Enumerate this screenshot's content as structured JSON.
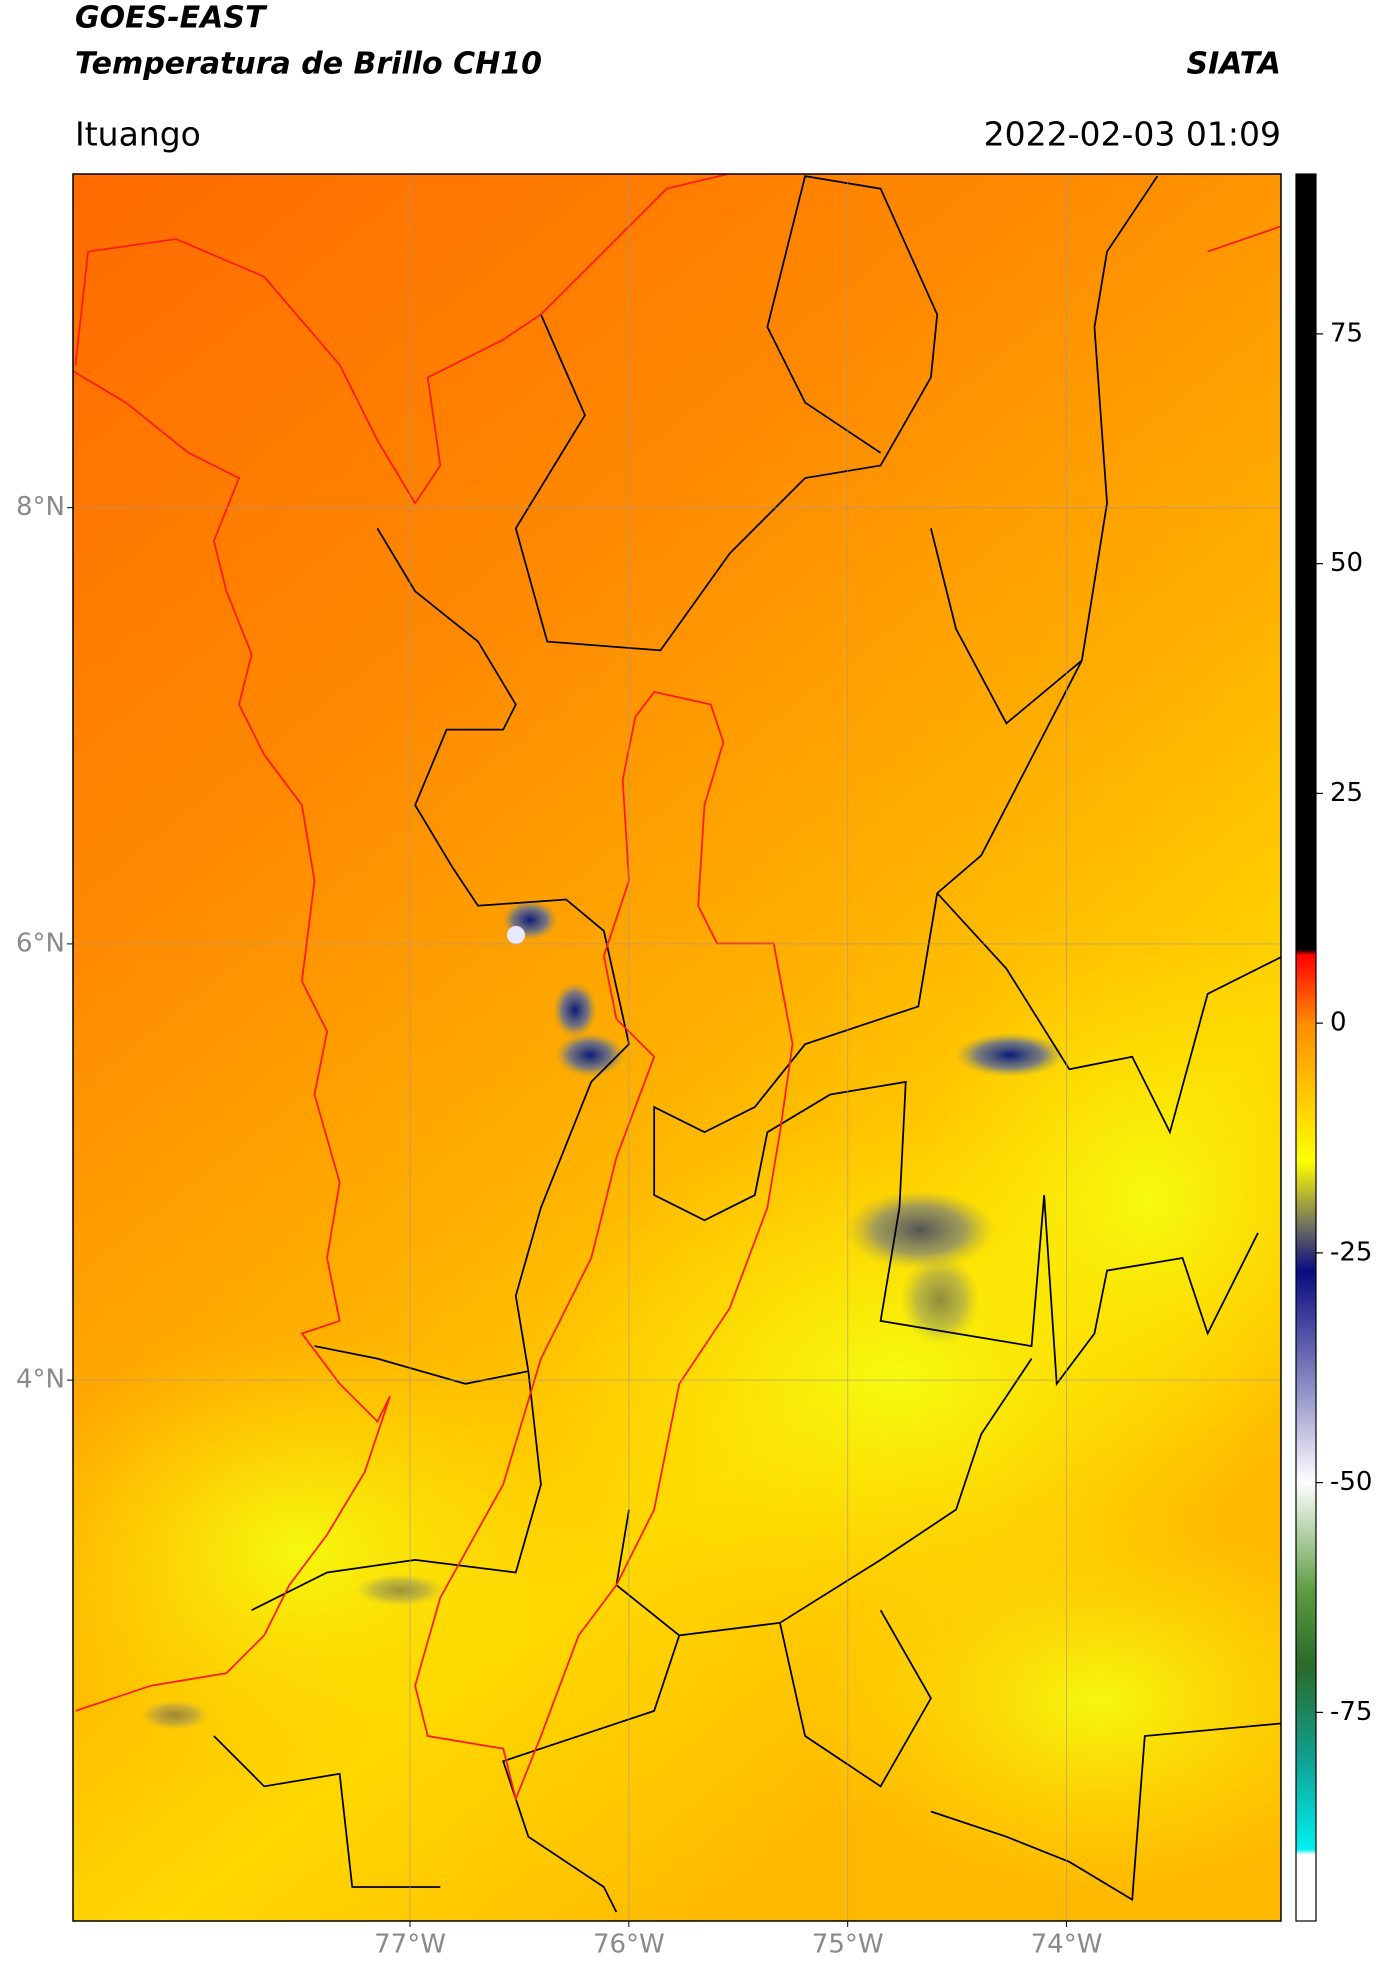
{
  "header": {
    "title": "GOES-EAST",
    "subtitle": "Temperatura de Brillo CH10",
    "brand": "SIATA",
    "location": "Ituango",
    "datetime": "2022-02-03 01:09"
  },
  "map": {
    "xlim": [
      -78.54,
      -73.02
    ],
    "ylim": [
      1.52,
      9.53
    ],
    "xticks": [
      {
        "value": -77,
        "label": "77°W"
      },
      {
        "value": -76,
        "label": "76°W"
      },
      {
        "value": -75,
        "label": "75°W"
      },
      {
        "value": -74,
        "label": "74°W"
      }
    ],
    "yticks": [
      {
        "value": 8,
        "label": "8°N"
      },
      {
        "value": 6,
        "label": "6°N"
      },
      {
        "value": 4,
        "label": "4°N"
      }
    ],
    "grid": true
  },
  "colorbar": {
    "lim": [
      -97.7,
      92.4
    ],
    "ticks": [
      75,
      50,
      25,
      0,
      -25,
      -50,
      -75
    ]
  }
}
